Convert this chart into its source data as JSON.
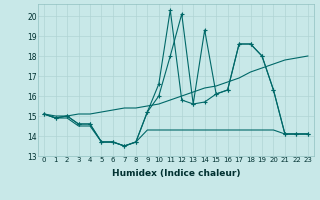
{
  "title": "",
  "xlabel": "Humidex (Indice chaleur)",
  "ylabel": "",
  "bg_color": "#c8e8e8",
  "grid_color": "#b0d4d4",
  "line_color": "#006868",
  "xlim": [
    -0.5,
    23.5
  ],
  "ylim": [
    13,
    20.6
  ],
  "yticks": [
    13,
    14,
    15,
    16,
    17,
    18,
    19,
    20
  ],
  "xticks": [
    0,
    1,
    2,
    3,
    4,
    5,
    6,
    7,
    8,
    9,
    10,
    11,
    12,
    13,
    14,
    15,
    16,
    17,
    18,
    19,
    20,
    21,
    22,
    23
  ],
  "series": [
    {
      "x": [
        0,
        1,
        2,
        3,
        4,
        5,
        6,
        7,
        8,
        9,
        10,
        11,
        12,
        13,
        14,
        15,
        16,
        17,
        18,
        19,
        20,
        21,
        22,
        23
      ],
      "y": [
        15.1,
        14.9,
        15.0,
        14.6,
        14.6,
        13.7,
        13.7,
        13.5,
        13.7,
        15.2,
        16.6,
        20.3,
        15.8,
        15.6,
        15.7,
        16.1,
        16.3,
        18.6,
        18.6,
        18.0,
        16.3,
        14.1,
        14.1,
        14.1
      ],
      "marker": true
    },
    {
      "x": [
        0,
        1,
        2,
        3,
        4,
        5,
        6,
        7,
        8,
        9,
        10,
        11,
        12,
        13,
        14,
        15,
        16,
        17,
        18,
        19,
        20,
        21,
        22,
        23
      ],
      "y": [
        15.1,
        14.9,
        15.0,
        14.6,
        14.6,
        13.7,
        13.7,
        13.5,
        13.7,
        15.2,
        16.0,
        18.0,
        20.1,
        15.6,
        19.3,
        16.1,
        16.3,
        18.6,
        18.6,
        18.0,
        16.3,
        14.1,
        14.1,
        14.1
      ],
      "marker": true
    },
    {
      "x": [
        0,
        1,
        2,
        3,
        4,
        5,
        6,
        7,
        8,
        9,
        10,
        11,
        12,
        13,
        14,
        15,
        16,
        17,
        18,
        19,
        20,
        21,
        22,
        23
      ],
      "y": [
        15.1,
        15.0,
        15.0,
        15.1,
        15.1,
        15.2,
        15.3,
        15.4,
        15.4,
        15.5,
        15.6,
        15.8,
        16.0,
        16.2,
        16.4,
        16.5,
        16.7,
        16.9,
        17.2,
        17.4,
        17.6,
        17.8,
        17.9,
        18.0
      ],
      "marker": false
    },
    {
      "x": [
        0,
        1,
        2,
        3,
        4,
        5,
        6,
        7,
        8,
        9,
        10,
        11,
        12,
        13,
        14,
        15,
        16,
        17,
        18,
        19,
        20,
        21,
        22,
        23
      ],
      "y": [
        15.1,
        14.9,
        14.9,
        14.5,
        14.5,
        13.7,
        13.7,
        13.5,
        13.7,
        14.3,
        14.3,
        14.3,
        14.3,
        14.3,
        14.3,
        14.3,
        14.3,
        14.3,
        14.3,
        14.3,
        14.3,
        14.1,
        14.1,
        14.1
      ],
      "marker": false
    }
  ]
}
